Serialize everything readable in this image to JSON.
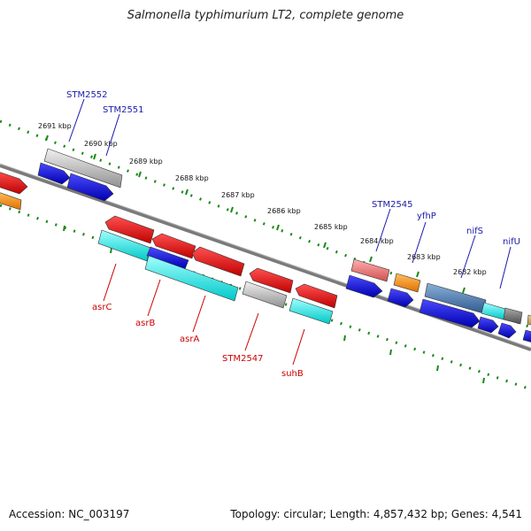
{
  "title": "Salmonella typhimurium LT2, complete genome",
  "footer": {
    "accession": "Accession: NC_003197",
    "topology": "Topology: circular; Length: 4,857,432 bp; Genes: 4,541"
  },
  "ruler": {
    "labels": [
      "2691 kbp",
      "2690 kbp",
      "2689 kbp",
      "2688 kbp",
      "2687 kbp",
      "2686 kbp",
      "2685 kbp",
      "2684 kbp",
      "2683 kbp",
      "2682 kbp"
    ]
  },
  "colors": {
    "backbone": "#808080",
    "ruler_tick": "#1a8a1a",
    "forward_label": "#1a1aaa",
    "reverse_label": "#cc0000"
  },
  "genes": {
    "forward_labels": [
      "STM2552",
      "STM2551",
      "STM2545",
      "yfhP",
      "nifS",
      "nifU"
    ],
    "reverse_labels": [
      "asrC",
      "asrB",
      "asrA",
      "STM2547",
      "suhB"
    ]
  }
}
